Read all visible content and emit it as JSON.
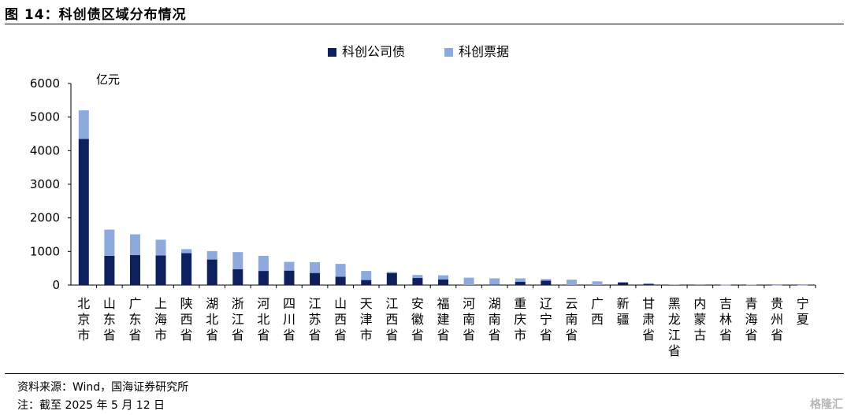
{
  "figure_title": "图 14：科创债区域分布情况",
  "source": "资料来源：Wind，国海证券研究所",
  "note": "注：截至 2025 年 5 月 12 日",
  "watermark": "格隆汇",
  "chart_data": {
    "type": "bar",
    "stacked": true,
    "ylabel": "亿元",
    "ylim": [
      0,
      6000
    ],
    "yticks": [
      0,
      1000,
      2000,
      3000,
      4000,
      5000,
      6000
    ],
    "legend_position": "top-center",
    "categories": [
      "北京市",
      "山东省",
      "广东省",
      "上海市",
      "陕西省",
      "湖北省",
      "浙江省",
      "河北省",
      "四川省",
      "江苏省",
      "山西省",
      "天津市",
      "江西省",
      "安徽省",
      "福建省",
      "河南省",
      "湖南省",
      "重庆市",
      "辽宁省",
      "云南省",
      "广西",
      "新疆",
      "甘肃省",
      "黑龙江省",
      "内蒙古",
      "吉林省",
      "青海省",
      "贵州省",
      "宁夏"
    ],
    "series": [
      {
        "name": "科创公司债",
        "color": "#0d1f5c",
        "values": [
          4350,
          870,
          890,
          880,
          950,
          760,
          470,
          420,
          430,
          360,
          250,
          150,
          360,
          210,
          170,
          0,
          10,
          100,
          130,
          0,
          0,
          80,
          40,
          0,
          0,
          0,
          0,
          0,
          0
        ]
      },
      {
        "name": "科创票据",
        "color": "#8ea9dc",
        "values": [
          850,
          780,
          620,
          470,
          120,
          250,
          510,
          450,
          260,
          320,
          380,
          270,
          30,
          90,
          120,
          220,
          190,
          100,
          50,
          160,
          110,
          0,
          10,
          20,
          25,
          10,
          15,
          5,
          5
        ]
      }
    ]
  }
}
